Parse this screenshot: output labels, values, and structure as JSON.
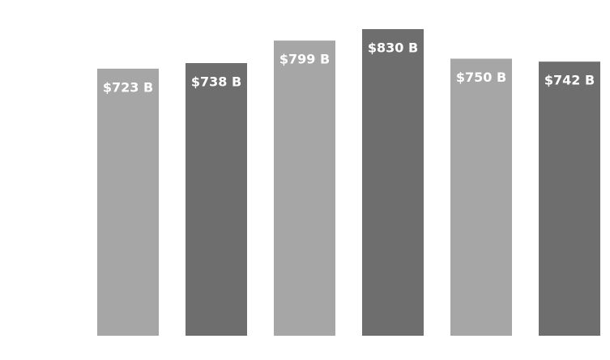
{
  "chart_data": {
    "type": "bar",
    "categories": [
      null,
      null,
      null,
      null,
      null,
      null
    ],
    "values": [
      723,
      738,
      799,
      830,
      750,
      742
    ],
    "value_labels": [
      "$723 B",
      "$738 B",
      "$799 B",
      "$830 B",
      "$750 B",
      "$742 B"
    ],
    "colors": [
      "#a6a6a6",
      "#6e6e6e",
      "#a6a6a6",
      "#6e6e6e",
      "#a6a6a6",
      "#6e6e6e"
    ]
  }
}
